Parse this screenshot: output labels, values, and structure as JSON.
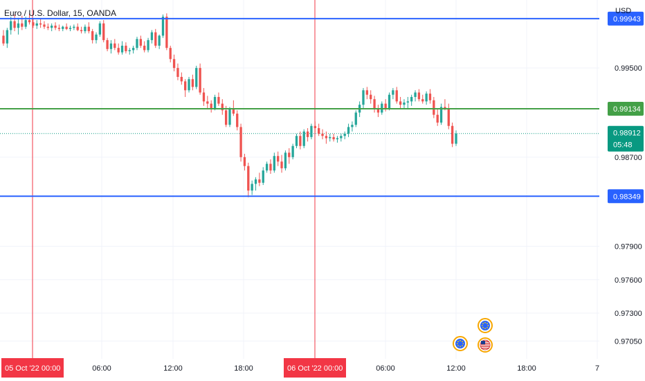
{
  "header": {
    "symbol_title": "Euro / U.S. Dollar, 15, OANDA",
    "currency": "USD"
  },
  "colors": {
    "up": "#26a69a",
    "down": "#ef5350",
    "blue_line": "#2962ff",
    "green_line": "#43a047",
    "price_badge": "#089981",
    "vline": "#f23645",
    "event_eu": "#2962ff",
    "event_ring": "#f7a600"
  },
  "chart_data": {
    "type": "candlestick",
    "title": "Euro / U.S. Dollar, 15, OANDA",
    "x_tick_labels": [
      "05 Oct '22   00:00",
      "06:00",
      "12:00",
      "18:00",
      "06 Oct '22   00:00",
      "06:00",
      "12:00",
      "18:00",
      "7"
    ],
    "y_tick_labels": [
      "0.99500",
      "0.98700",
      "0.97900",
      "0.97600",
      "0.97300",
      "0.97050"
    ],
    "y_ticks": [
      0.995,
      0.987,
      0.979,
      0.976,
      0.973,
      0.9705
    ],
    "ylim": [
      0.9689,
      1.0011
    ],
    "horizontal_lines": [
      {
        "label": "0.99943",
        "value": 0.99943,
        "color": "#2962ff"
      },
      {
        "label": "0.99134",
        "value": 0.99134,
        "color": "#43a047"
      },
      {
        "label": "0.98349",
        "value": 0.98349,
        "color": "#2962ff"
      }
    ],
    "vertical_lines": [
      "05 Oct '22   00:00",
      "06 Oct '22   00:00"
    ],
    "current_price": {
      "label": "0.98912",
      "value": 0.98912,
      "countdown": "05:48"
    },
    "events": [
      "euro-event",
      "euro-event",
      "us-event"
    ],
    "candles": [
      [
        0.9979,
        0.9984,
        0.997,
        0.9972
      ],
      [
        0.9972,
        0.9986,
        0.9968,
        0.9984
      ],
      [
        0.9984,
        0.9996,
        0.998,
        0.9992
      ],
      [
        0.9992,
        0.9998,
        0.9983,
        0.9986
      ],
      [
        0.9986,
        0.9995,
        0.998,
        0.999
      ],
      [
        0.999,
        0.9997,
        0.9984,
        0.9987
      ],
      [
        0.9987,
        0.9996,
        0.9985,
        0.9993
      ],
      [
        0.9993,
        0.9999,
        0.9989,
        0.9991
      ],
      [
        0.9991,
        0.9994,
        0.9986,
        0.9988
      ],
      [
        0.9988,
        0.9993,
        0.9985,
        0.999
      ],
      [
        0.999,
        0.9994,
        0.9986,
        0.9989
      ],
      [
        0.9989,
        0.9992,
        0.9985,
        0.9987
      ],
      [
        0.9987,
        0.999,
        0.9984,
        0.9986
      ],
      [
        0.9986,
        0.999,
        0.9983,
        0.9988
      ],
      [
        0.9988,
        0.9991,
        0.9984,
        0.9986
      ],
      [
        0.9986,
        0.9989,
        0.9983,
        0.9985
      ],
      [
        0.9985,
        0.9988,
        0.9983,
        0.9987
      ],
      [
        0.9987,
        0.999,
        0.9984,
        0.9985
      ],
      [
        0.9985,
        0.9988,
        0.9983,
        0.9986
      ],
      [
        0.9986,
        0.9989,
        0.9984,
        0.9987
      ],
      [
        0.9987,
        0.999,
        0.9983,
        0.9984
      ],
      [
        0.9984,
        0.9987,
        0.9981,
        0.9983
      ],
      [
        0.9983,
        0.9989,
        0.9981,
        0.9987
      ],
      [
        0.9987,
        0.9991,
        0.9981,
        0.9983
      ],
      [
        0.9983,
        0.9985,
        0.9972,
        0.9975
      ],
      [
        0.9975,
        0.9982,
        0.9972,
        0.998
      ],
      [
        0.998,
        0.9992,
        0.9978,
        0.999
      ],
      [
        0.999,
        0.9993,
        0.9973,
        0.9975
      ],
      [
        0.9975,
        0.9977,
        0.9965,
        0.9967
      ],
      [
        0.9967,
        0.9975,
        0.9963,
        0.9972
      ],
      [
        0.9972,
        0.9976,
        0.9966,
        0.9968
      ],
      [
        0.9968,
        0.9972,
        0.9962,
        0.9964
      ],
      [
        0.9964,
        0.9974,
        0.9962,
        0.997
      ],
      [
        0.997,
        0.9973,
        0.9963,
        0.9965
      ],
      [
        0.9965,
        0.9968,
        0.9962,
        0.9966
      ],
      [
        0.9966,
        0.997,
        0.9963,
        0.9968
      ],
      [
        0.9968,
        0.9978,
        0.9966,
        0.9976
      ],
      [
        0.9976,
        0.9979,
        0.9968,
        0.997
      ],
      [
        0.997,
        0.9974,
        0.9964,
        0.9966
      ],
      [
        0.9966,
        0.9977,
        0.9964,
        0.9975
      ],
      [
        0.9975,
        0.9984,
        0.9972,
        0.9982
      ],
      [
        0.9982,
        0.9985,
        0.9968,
        0.997
      ],
      [
        0.997,
        0.998,
        0.9967,
        0.9979
      ],
      [
        0.9979,
        0.9998,
        0.9977,
        0.9996
      ],
      [
        0.9996,
        0.9999,
        0.9966,
        0.9968
      ],
      [
        0.9968,
        0.997,
        0.9955,
        0.9958
      ],
      [
        0.9958,
        0.9962,
        0.9947,
        0.995
      ],
      [
        0.995,
        0.9954,
        0.9939,
        0.9942
      ],
      [
        0.9942,
        0.9946,
        0.9935,
        0.9938
      ],
      [
        0.9938,
        0.994,
        0.9924,
        0.993
      ],
      [
        0.993,
        0.9942,
        0.9928,
        0.994
      ],
      [
        0.994,
        0.9944,
        0.993,
        0.9933
      ],
      [
        0.9933,
        0.9952,
        0.9931,
        0.995
      ],
      [
        0.995,
        0.9954,
        0.9926,
        0.9928
      ],
      [
        0.9928,
        0.9932,
        0.9916,
        0.992
      ],
      [
        0.992,
        0.9925,
        0.9914,
        0.9918
      ],
      [
        0.9918,
        0.9921,
        0.991,
        0.9914
      ],
      [
        0.9914,
        0.9926,
        0.9912,
        0.9924
      ],
      [
        0.9924,
        0.9928,
        0.9916,
        0.9918
      ],
      [
        0.9918,
        0.9922,
        0.9908,
        0.9912
      ],
      [
        0.9912,
        0.9916,
        0.9897,
        0.9899
      ],
      [
        0.9899,
        0.9915,
        0.9897,
        0.9913
      ],
      [
        0.9913,
        0.9921,
        0.9907,
        0.9909
      ],
      [
        0.9909,
        0.9912,
        0.9894,
        0.9897
      ],
      [
        0.9897,
        0.99,
        0.9866,
        0.987
      ],
      [
        0.987,
        0.9873,
        0.9858,
        0.9862
      ],
      [
        0.9862,
        0.9865,
        0.9834,
        0.984
      ],
      [
        0.984,
        0.9849,
        0.9836,
        0.9846
      ],
      [
        0.9846,
        0.9852,
        0.984,
        0.985
      ],
      [
        0.985,
        0.9856,
        0.9844,
        0.9847
      ],
      [
        0.9847,
        0.9861,
        0.9845,
        0.9858
      ],
      [
        0.9858,
        0.9866,
        0.9856,
        0.9864
      ],
      [
        0.9864,
        0.9868,
        0.9855,
        0.9858
      ],
      [
        0.9858,
        0.9874,
        0.9856,
        0.9871
      ],
      [
        0.9871,
        0.9875,
        0.9862,
        0.9866
      ],
      [
        0.9866,
        0.9872,
        0.9856,
        0.986
      ],
      [
        0.986,
        0.9876,
        0.9858,
        0.9874
      ],
      [
        0.9874,
        0.9878,
        0.9864,
        0.987
      ],
      [
        0.987,
        0.9882,
        0.9868,
        0.988
      ],
      [
        0.988,
        0.9891,
        0.9878,
        0.9889
      ],
      [
        0.9889,
        0.9893,
        0.9877,
        0.988
      ],
      [
        0.988,
        0.9895,
        0.9878,
        0.9893
      ],
      [
        0.9893,
        0.9896,
        0.9884,
        0.9888
      ],
      [
        0.9888,
        0.99,
        0.9886,
        0.9898
      ],
      [
        0.9898,
        0.9902,
        0.9892,
        0.9896
      ],
      [
        0.9896,
        0.99,
        0.9889,
        0.9891
      ],
      [
        0.9891,
        0.9895,
        0.9886,
        0.9889
      ],
      [
        0.9889,
        0.9893,
        0.9882,
        0.9887
      ],
      [
        0.9887,
        0.9891,
        0.9884,
        0.9888
      ],
      [
        0.9888,
        0.9891,
        0.9884,
        0.9886
      ],
      [
        0.9886,
        0.9889,
        0.9883,
        0.9887
      ],
      [
        0.9887,
        0.9891,
        0.9884,
        0.9889
      ],
      [
        0.9889,
        0.9893,
        0.9886,
        0.9891
      ],
      [
        0.9891,
        0.99,
        0.9888,
        0.9897
      ],
      [
        0.9897,
        0.9902,
        0.9893,
        0.9899
      ],
      [
        0.9899,
        0.9912,
        0.9897,
        0.991
      ],
      [
        0.991,
        0.992,
        0.9906,
        0.9917
      ],
      [
        0.9917,
        0.9932,
        0.9914,
        0.993
      ],
      [
        0.993,
        0.9933,
        0.9922,
        0.9926
      ],
      [
        0.9926,
        0.993,
        0.9918,
        0.9922
      ],
      [
        0.9922,
        0.9925,
        0.991,
        0.9913
      ],
      [
        0.9913,
        0.9917,
        0.9906,
        0.991
      ],
      [
        0.991,
        0.992,
        0.9908,
        0.9918
      ],
      [
        0.9918,
        0.9922,
        0.9911,
        0.9914
      ],
      [
        0.9914,
        0.9928,
        0.9912,
        0.9926
      ],
      [
        0.9926,
        0.9932,
        0.9922,
        0.993
      ],
      [
        0.993,
        0.9933,
        0.9918,
        0.992
      ],
      [
        0.992,
        0.9924,
        0.9913,
        0.9917
      ],
      [
        0.9917,
        0.9922,
        0.9913,
        0.9919
      ],
      [
        0.9919,
        0.9924,
        0.9914,
        0.992
      ],
      [
        0.992,
        0.9926,
        0.9916,
        0.9924
      ],
      [
        0.9924,
        0.993,
        0.992,
        0.9928
      ],
      [
        0.9928,
        0.9931,
        0.992,
        0.9922
      ],
      [
        0.9922,
        0.9926,
        0.9918,
        0.992
      ],
      [
        0.992,
        0.9929,
        0.9917,
        0.9927
      ],
      [
        0.9927,
        0.9931,
        0.9918,
        0.9921
      ],
      [
        0.9921,
        0.9924,
        0.9905,
        0.9908
      ],
      [
        0.9908,
        0.9914,
        0.9898,
        0.9901
      ],
      [
        0.9901,
        0.9918,
        0.9899,
        0.9915
      ],
      [
        0.9915,
        0.9922,
        0.9912,
        0.9914
      ],
      [
        0.9914,
        0.9918,
        0.9895,
        0.9898
      ],
      [
        0.9898,
        0.9901,
        0.9879,
        0.9882
      ],
      [
        0.9882,
        0.9894,
        0.988,
        0.9891
      ]
    ]
  }
}
